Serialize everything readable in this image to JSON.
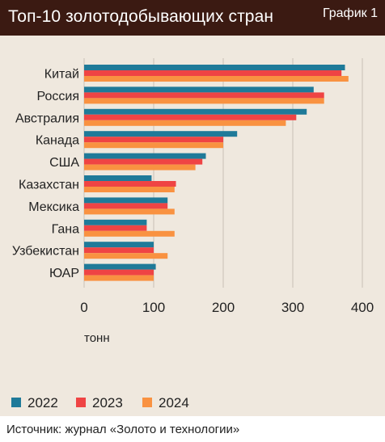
{
  "header": {
    "title": "Топ-10 золотодобывающих стран",
    "badge": "График 1"
  },
  "source": "Источник: журнал «Золото и технологии»",
  "chart_data": {
    "type": "bar",
    "orientation": "horizontal",
    "categories": [
      "Китай",
      "Россия",
      "Австралия",
      "Канада",
      "США",
      "Казахстан",
      "Мексика",
      "Гана",
      "Узбекистан",
      "ЮАР"
    ],
    "series": [
      {
        "name": "2022",
        "color": "#1f7a99",
        "values": [
          375,
          330,
          320,
          220,
          175,
          97,
          120,
          90,
          100,
          103
        ]
      },
      {
        "name": "2023",
        "color": "#ef4444",
        "values": [
          370,
          345,
          305,
          200,
          170,
          132,
          120,
          90,
          100,
          100
        ]
      },
      {
        "name": "2024",
        "color": "#f99241",
        "values": [
          380,
          345,
          290,
          200,
          160,
          130,
          130,
          130,
          120,
          100
        ]
      }
    ],
    "xlim": [
      0,
      400
    ],
    "xticks": [
      "0",
      "100",
      "200",
      "300",
      "400"
    ],
    "xlabel": "тонн",
    "grid": true,
    "legend_position": "bottom"
  }
}
